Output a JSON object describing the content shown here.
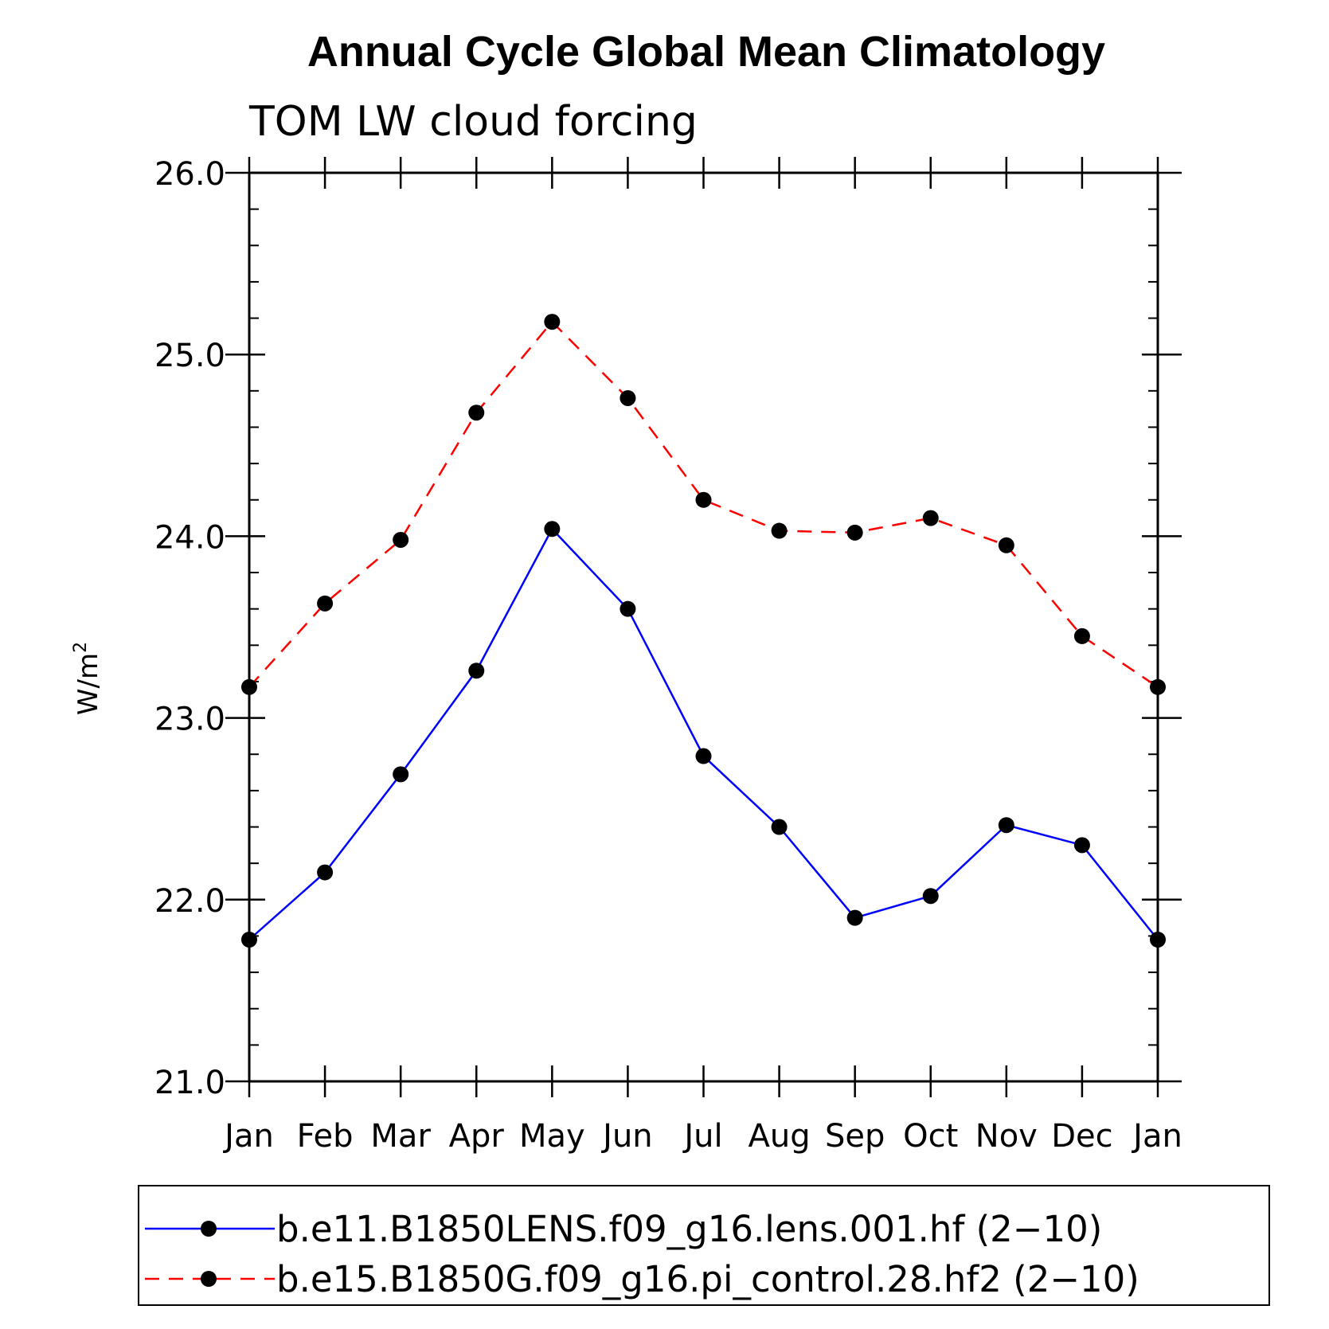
{
  "title": "Annual Cycle Global Mean Climatology",
  "chart_data": {
    "type": "line",
    "title": "Annual Cycle Global Mean Climatology",
    "subtitle": "TOM LW cloud forcing",
    "xlabel": "",
    "ylabel": "W/m",
    "ylabel_superscript": "2",
    "categories": [
      "Jan",
      "Feb",
      "Mar",
      "Apr",
      "May",
      "Jun",
      "Jul",
      "Aug",
      "Sep",
      "Oct",
      "Nov",
      "Dec",
      "Jan"
    ],
    "ylim": [
      21.0,
      26.0
    ],
    "yticks": [
      "21.0",
      "22.0",
      "23.0",
      "24.0",
      "25.0",
      "26.0"
    ],
    "y_minor_step": 0.2,
    "grid": false,
    "legend_position": "bottom",
    "series": [
      {
        "name": "b.e11.B1850LENS.f09_g16.lens.001.hf (2−10)",
        "color": "#0000ff",
        "dash": "solid",
        "marker": "filled-circle",
        "values": [
          21.78,
          22.15,
          22.69,
          23.26,
          24.04,
          23.6,
          22.79,
          22.4,
          21.9,
          22.02,
          22.41,
          22.3,
          21.78
        ]
      },
      {
        "name": "b.e15.B1850G.f09_g16.pi_control.28.hf2 (2−10)",
        "color": "#ff0000",
        "dash": "dashed",
        "marker": "filled-circle",
        "values": [
          23.17,
          23.63,
          23.98,
          24.68,
          25.18,
          24.76,
          24.2,
          24.03,
          24.02,
          24.1,
          23.95,
          23.45,
          23.17
        ]
      }
    ]
  }
}
